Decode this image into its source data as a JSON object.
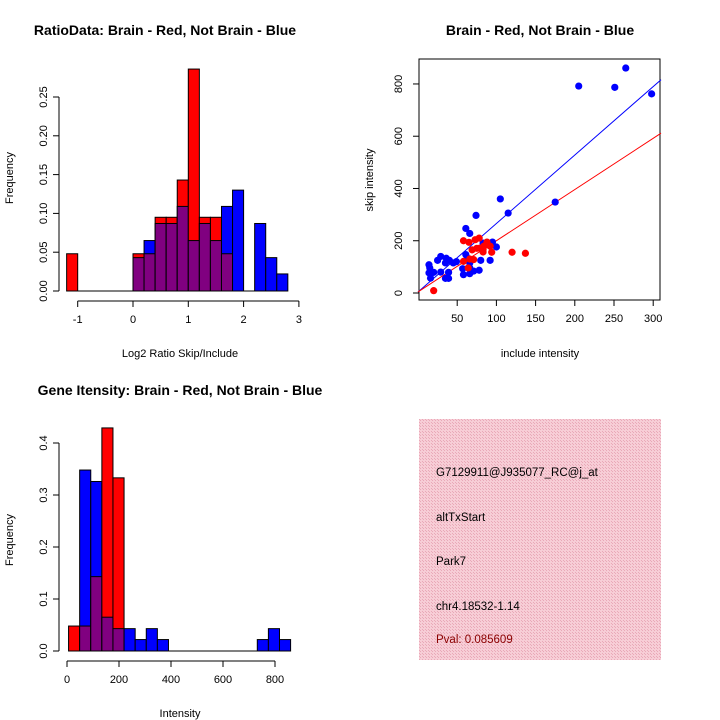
{
  "colors": {
    "brain": "#ff0000",
    "not_brain": "#0000ff",
    "overlap": "#800080",
    "panel_bg": "#f4c4cf",
    "pval": "#8b0000"
  },
  "chart_data": [
    {
      "type": "bar",
      "subtype": "overlaid-histogram",
      "title": "RatioData: Brain - Red, Not Brain - Blue",
      "xlabel": "Log2 Ratio Skip/Include",
      "ylabel": "Frequency",
      "xlim": [
        -1.2,
        3
      ],
      "ylim": [
        0,
        0.29
      ],
      "xticks": [
        "-1",
        "0",
        "1",
        "2",
        "3"
      ],
      "xtick_values": [
        -1,
        0,
        1,
        2,
        3
      ],
      "yticks": [
        "0.00",
        "0.05",
        "0.10",
        "0.15",
        "0.20",
        "0.25"
      ],
      "ytick_values": [
        0,
        0.05,
        0.1,
        0.15,
        0.2,
        0.25
      ],
      "breaks": [
        -1.2,
        -1.0,
        -0.8,
        -0.6,
        -0.4,
        -0.2,
        0,
        0.2,
        0.4,
        0.6,
        0.8,
        1.0,
        1.2,
        1.4,
        1.6,
        1.8,
        2.0,
        2.2,
        2.4,
        2.6,
        2.8
      ],
      "series": [
        {
          "name": "Brain",
          "color": "#ff0000",
          "values": [
            0.048,
            0,
            0,
            0,
            0,
            0,
            0.048,
            0.048,
            0.095,
            0.095,
            0.143,
            0.286,
            0.095,
            0.095,
            0.048,
            0,
            0,
            0,
            0,
            0
          ]
        },
        {
          "name": "Not Brain",
          "color": "#0000ff",
          "values": [
            0,
            0,
            0,
            0,
            0,
            0,
            0.043,
            0.065,
            0.087,
            0.087,
            0.109,
            0.065,
            0.087,
            0.065,
            0.109,
            0.13,
            0,
            0.087,
            0.043,
            0.022
          ]
        }
      ]
    },
    {
      "type": "scatter",
      "title": "Brain - Red, Not Brain - Blue",
      "xlabel": "include intensity",
      "ylabel": "skip intensity",
      "xlim": [
        0,
        310
      ],
      "ylim": [
        -10,
        890
      ],
      "xticks": [
        "50",
        "100",
        "150",
        "200",
        "250",
        "300"
      ],
      "xtick_values": [
        50,
        100,
        150,
        200,
        250,
        300
      ],
      "yticks": [
        "0",
        "200",
        "400",
        "600",
        "800"
      ],
      "ytick_values": [
        0,
        200,
        400,
        600,
        800
      ],
      "series": [
        {
          "name": "Not Brain",
          "color": "#0000ff",
          "fit": {
            "intercept": 4,
            "slope": 2.62
          },
          "points": [
            [
              265,
              861
            ],
            [
              205,
              792
            ],
            [
              251,
              787
            ],
            [
              298,
              762
            ],
            [
              105,
              360
            ],
            [
              115,
              306
            ],
            [
              175,
              348
            ],
            [
              74,
              297
            ],
            [
              61,
              247
            ],
            [
              66,
              228
            ],
            [
              83,
              191
            ],
            [
              95,
              195
            ],
            [
              100,
              176
            ],
            [
              80,
              125
            ],
            [
              92,
              125
            ],
            [
              78,
              87
            ],
            [
              61,
              147
            ],
            [
              63,
              134
            ],
            [
              29,
              140
            ],
            [
              25,
              125
            ],
            [
              36,
              133
            ],
            [
              40,
              125
            ],
            [
              35,
              115
            ],
            [
              49,
              120
            ],
            [
              14,
              108
            ],
            [
              15,
              96
            ],
            [
              14,
              77
            ],
            [
              16,
              57
            ],
            [
              20,
              79
            ],
            [
              29,
              80
            ],
            [
              39,
              79
            ],
            [
              35,
              56
            ],
            [
              39,
              56
            ],
            [
              57,
              93
            ],
            [
              58,
              70
            ],
            [
              66,
              115
            ],
            [
              66,
              96
            ],
            [
              66,
              74
            ],
            [
              71,
              84
            ],
            [
              45,
              115
            ]
          ]
        },
        {
          "name": "Brain",
          "color": "#ff0000",
          "fit": {
            "intercept": 4,
            "slope": 1.96
          },
          "points": [
            [
              20,
              9
            ],
            [
              58,
              200
            ],
            [
              65,
              194
            ],
            [
              73,
              204
            ],
            [
              78,
              210
            ],
            [
              88,
              195
            ],
            [
              69,
              165
            ],
            [
              75,
              171
            ],
            [
              83,
              166
            ],
            [
              83,
              157
            ],
            [
              94,
              156
            ],
            [
              92,
              179
            ],
            [
              120,
              156
            ],
            [
              137,
              152
            ],
            [
              58,
              121
            ],
            [
              66,
              130
            ],
            [
              87,
              185
            ],
            [
              79,
              172
            ],
            [
              64,
              96
            ],
            [
              71,
              128
            ],
            [
              84,
              179
            ]
          ]
        }
      ]
    },
    {
      "type": "bar",
      "subtype": "overlaid-histogram",
      "title": "Gene Itensity: Brain - Red, Not Brain - Blue",
      "xlabel": "Intensity",
      "ylabel": "Frequency",
      "xlim": [
        0,
        860
      ],
      "ylim": [
        0,
        0.43
      ],
      "xticks": [
        "0",
        "200",
        "400",
        "600",
        "800"
      ],
      "xtick_values": [
        0,
        200,
        400,
        600,
        800
      ],
      "yticks": [
        "0.0",
        "0.1",
        "0.2",
        "0.3",
        "0.4"
      ],
      "ytick_values": [
        0,
        0.1,
        0.2,
        0.3,
        0.4
      ],
      "breaks": [
        6,
        48.7,
        91.4,
        134.1,
        176.8,
        219.5,
        262.2,
        304.9,
        347.6,
        390.3,
        433,
        475.7,
        518.4,
        561.1,
        603.8,
        646.5,
        689.2,
        731.9,
        774.6,
        817.3,
        860
      ],
      "series": [
        {
          "name": "Brain",
          "color": "#ff0000",
          "values": [
            0.048,
            0.048,
            0.143,
            0.429,
            0.333,
            0,
            0,
            0,
            0,
            0,
            0,
            0,
            0,
            0,
            0,
            0,
            0,
            0,
            0,
            0
          ]
        },
        {
          "name": "Not Brain",
          "color": "#0000ff",
          "values": [
            0,
            0.348,
            0.326,
            0.065,
            0.043,
            0.043,
            0.022,
            0.043,
            0.022,
            0,
            0,
            0,
            0,
            0,
            0,
            0,
            0,
            0.022,
            0.043,
            0.022
          ]
        }
      ]
    }
  ],
  "info_panel": {
    "probe_id": "G7129911@J935077_RC@j_at",
    "event_type": "altTxStart",
    "gene": "Park7",
    "location": "chr4.18532-1.14",
    "pval": "Pval: 0.085609"
  }
}
